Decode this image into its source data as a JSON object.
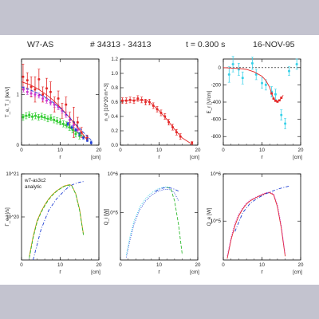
{
  "header": {
    "device": "W7-AS",
    "shots": "# 34313 - 34313",
    "time": "t = 0.300 s",
    "date": "16-NOV-95"
  },
  "colors": {
    "background": "#c3c3cf",
    "sheet": "#ffffff",
    "axes": "#000000",
    "red": "#e32626",
    "magenta": "#cc33cc",
    "green": "#33cc33",
    "blue": "#1f3fd4",
    "cyan": "#35d0e8",
    "orange": "#c8960a",
    "greenDash": "#33bb33"
  },
  "chart_data": [
    {
      "id": "te_ti",
      "type": "scatter",
      "ylabel": "T_e, T_i [keV]",
      "xlabel": "r",
      "xunit": "[cm]",
      "xlim": [
        0,
        20
      ],
      "ylim": [
        0,
        1.7
      ],
      "xticks": [
        "0",
        "10",
        "20"
      ],
      "yticks": [
        {
          "v": 0,
          "t": "0"
        },
        {
          "v": 1,
          "t": "1"
        }
      ],
      "series": [
        {
          "color": "red",
          "style": "errpoints",
          "x": [
            0.4,
            1.5,
            2.5,
            3.5,
            4.5,
            5.5,
            6.5,
            7.5,
            8.5,
            9.5,
            10.5,
            11.5,
            12.5,
            13.5,
            14.5,
            15.5,
            17
          ],
          "y": [
            1.35,
            1.28,
            1.15,
            1.1,
            1.3,
            1.0,
            1.12,
            1.05,
            0.8,
            0.92,
            0.68,
            0.8,
            0.5,
            0.45,
            0.45,
            0.25,
            0.15
          ],
          "err": [
            0.25,
            0.15,
            0.2,
            0.25,
            0.2,
            0.15,
            0.2,
            0.2,
            0.15,
            0.15,
            0.15,
            0.15,
            0.15,
            0.3,
            0.1,
            0.1,
            0.05
          ]
        },
        {
          "color": "magenta",
          "style": "points",
          "x": [
            0.5,
            1.5,
            2.5,
            3.5,
            4.5,
            5.5,
            6.5,
            7.5,
            8.5,
            9.5,
            10.5,
            11.5,
            12.5,
            13.5,
            14.5
          ],
          "y": [
            1.1,
            1.05,
            1.02,
            1.0,
            0.98,
            0.92,
            0.88,
            0.84,
            0.8,
            0.75,
            0.68,
            0.6,
            0.5,
            0.4,
            0.3
          ],
          "err": [
            0.05,
            0.05,
            0.05,
            0.05,
            0.05,
            0.05,
            0.05,
            0.05,
            0.05,
            0.05,
            0.05,
            0.05,
            0.05,
            0.05,
            0.05
          ]
        },
        {
          "color": "green",
          "style": "points",
          "x": [
            0.4,
            1.2,
            2.0,
            2.8,
            3.6,
            4.4,
            5.2,
            6.0,
            6.8,
            7.6,
            8.4,
            9.2,
            10.0,
            10.8,
            11.6,
            12.4,
            13.2,
            14,
            15
          ],
          "y": [
            0.55,
            0.58,
            0.6,
            0.56,
            0.58,
            0.55,
            0.57,
            0.55,
            0.52,
            0.54,
            0.5,
            0.48,
            0.46,
            0.42,
            0.4,
            0.35,
            0.3,
            0.22,
            0.18
          ],
          "err": [
            0.06,
            0.06,
            0.06,
            0.06,
            0.06,
            0.06,
            0.06,
            0.06,
            0.06,
            0.06,
            0.06,
            0.06,
            0.06,
            0.06,
            0.06,
            0.06,
            0.06,
            0.06,
            0.06
          ]
        },
        {
          "color": "blue",
          "style": "points",
          "x": [
            12,
            13,
            14,
            15,
            16,
            17,
            18
          ],
          "y": [
            0.42,
            0.35,
            0.3,
            0.22,
            0.15,
            0.1,
            0.05
          ],
          "err": [
            0.03,
            0.03,
            0.03,
            0.03,
            0.03,
            0.03,
            0.03
          ]
        },
        {
          "color": "red",
          "style": "line",
          "x": [
            0,
            2,
            4,
            6,
            8,
            10,
            12,
            14,
            16,
            17
          ],
          "y": [
            1.25,
            1.2,
            1.12,
            1.02,
            0.9,
            0.75,
            0.58,
            0.4,
            0.2,
            0.1
          ]
        },
        {
          "color": "blue",
          "style": "dash",
          "x": [
            0,
            2,
            4,
            6,
            8,
            10,
            12,
            14,
            16,
            18
          ],
          "y": [
            1.15,
            1.1,
            1.03,
            0.95,
            0.85,
            0.73,
            0.58,
            0.42,
            0.25,
            0.1
          ]
        },
        {
          "color": "green",
          "style": "line",
          "x": [
            0,
            4,
            8,
            12,
            16
          ],
          "y": [
            0.58,
            0.57,
            0.5,
            0.36,
            0.17
          ]
        }
      ]
    },
    {
      "id": "ne",
      "type": "scatter",
      "ylabel": "n_e [10^20 m^-3]",
      "xlabel": "r",
      "xunit": "[cm]",
      "xlim": [
        0,
        20
      ],
      "ylim": [
        0,
        1.2
      ],
      "xticks": [
        "0",
        "10",
        "20"
      ],
      "yticks": [
        {
          "v": 0,
          "t": "0.0"
        },
        {
          "v": 0.2,
          "t": "0.2"
        },
        {
          "v": 0.4,
          "t": "0.4"
        },
        {
          "v": 0.6,
          "t": "0.6"
        },
        {
          "v": 0.8,
          "t": "0.8"
        },
        {
          "v": 1.0,
          "t": "1.0"
        },
        {
          "v": 1.2,
          "t": "1.2"
        }
      ],
      "series": [
        {
          "color": "red",
          "style": "errpoints",
          "x": [
            0.5,
            1.5,
            2.5,
            3.5,
            4.5,
            5.5,
            6.5,
            7.5,
            8.5,
            9.5,
            10.5,
            11.5,
            12.5,
            13.5,
            14.5,
            15.5,
            18.5
          ],
          "y": [
            0.62,
            0.62,
            0.63,
            0.62,
            0.65,
            0.63,
            0.6,
            0.6,
            0.55,
            0.5,
            0.45,
            0.4,
            0.32,
            0.25,
            0.18,
            0.12,
            0.03
          ],
          "err": [
            0.04,
            0.04,
            0.04,
            0.04,
            0.04,
            0.04,
            0.04,
            0.04,
            0.04,
            0.04,
            0.04,
            0.04,
            0.04,
            0.04,
            0.04,
            0.04,
            0.02
          ]
        },
        {
          "color": "red",
          "style": "line",
          "x": [
            0,
            2,
            4,
            6,
            7,
            8,
            10,
            12,
            14,
            16,
            18
          ],
          "y": [
            0.62,
            0.62,
            0.63,
            0.63,
            0.62,
            0.58,
            0.48,
            0.36,
            0.22,
            0.1,
            0.03
          ]
        }
      ]
    },
    {
      "id": "er",
      "type": "scatter",
      "ylabel": "E_r [V/cm]",
      "xlabel": "r",
      "xunit": "[cm]",
      "xlim": [
        0,
        20
      ],
      "ylim": [
        -900,
        100
      ],
      "xticks": [
        "0",
        "10",
        "20"
      ],
      "yticks": [
        {
          "v": 0,
          "t": "0"
        },
        {
          "v": -200,
          "t": "-200"
        },
        {
          "v": -400,
          "t": "-400"
        },
        {
          "v": -600,
          "t": "-600"
        },
        {
          "v": -800,
          "t": "-800"
        }
      ],
      "zero_line": true,
      "series": [
        {
          "color": "cyan",
          "style": "errpoints",
          "x": [
            1.5,
            2.5,
            4,
            5,
            7.5,
            8.5,
            10,
            11,
            12.5,
            13.5,
            15,
            16,
            17,
            19
          ],
          "y": [
            -80,
            40,
            -20,
            -120,
            50,
            -80,
            -180,
            -200,
            -280,
            -310,
            -550,
            -650,
            -40,
            40
          ],
          "err": [
            90,
            90,
            70,
            70,
            70,
            60,
            60,
            60,
            60,
            60,
            60,
            60,
            50,
            60
          ]
        },
        {
          "color": "red",
          "style": "line",
          "x": [
            0,
            4,
            6,
            8,
            10,
            11,
            12,
            12.5,
            13,
            13.5,
            14,
            14.5,
            15,
            15.5
          ],
          "y": [
            0,
            -10,
            -20,
            -50,
            -100,
            -150,
            -230,
            -300,
            -360,
            -380,
            -390,
            -380,
            -350,
            -320
          ]
        },
        {
          "color": "red",
          "style": "points",
          "x": [
            12.5,
            13,
            13.5,
            14,
            14.5,
            15
          ],
          "y": [
            -300,
            -360,
            -385,
            -395,
            -380,
            -350
          ],
          "err": [
            8,
            8,
            8,
            8,
            8,
            8
          ]
        }
      ]
    },
    {
      "id": "gamma",
      "type": "line",
      "ylabel": "Γ_e,i [/s]",
      "xlabel": "r",
      "xunit": "[cm]",
      "xlim": [
        0,
        20
      ],
      "ylog": true,
      "ylim": [
        1e+19,
        1e+21
      ],
      "xticks": [
        "0",
        "10",
        "20"
      ],
      "yticks": [
        {
          "v": 1e+20,
          "t": "10^20"
        },
        {
          "v": 1e+21,
          "t": "10^21"
        }
      ],
      "legend": [
        "w7-as3c2",
        "analytic"
      ],
      "series": [
        {
          "color": "orange",
          "style": "line",
          "x": [
            2,
            3,
            4,
            5,
            6,
            7,
            8,
            9,
            10,
            11,
            12,
            12.5,
            13,
            14,
            15,
            16
          ],
          "y": [
            1.2e+19,
            3.5e+19,
            8e+19,
            1.3e+20,
            1.9e+20,
            2.6e+20,
            3.3e+20,
            4e+20,
            4.6e+20,
            5.2e+20,
            5.5e+20,
            5.6e+20,
            5.3e+20,
            3.5e+20,
            1.5e+20,
            4e+19
          ]
        },
        {
          "color": "greenDash",
          "style": "dash",
          "x": [
            2,
            3,
            4,
            5,
            6,
            7,
            8,
            9,
            10,
            11,
            12,
            12.5,
            13,
            14,
            15,
            16
          ],
          "y": [
            1.1e+19,
            3.2e+19,
            7.5e+19,
            1.25e+20,
            1.8e+20,
            2.5e+20,
            3.2e+20,
            3.9e+20,
            4.5e+20,
            5.1e+20,
            5.4e+20,
            5.5e+20,
            5.2e+20,
            3.4e+20,
            1.4e+20,
            3.8e+19
          ]
        },
        {
          "color": "blue",
          "style": "dashdot",
          "x": [
            3,
            5,
            7,
            9,
            11,
            12,
            13,
            14,
            15,
            16
          ],
          "y": [
            1e+19,
            5e+19,
            1.4e+20,
            2.6e+20,
            4e+20,
            4.8e+20,
            5.5e+20,
            6e+20,
            6.4e+20,
            6.6e+20
          ]
        }
      ]
    },
    {
      "id": "qi",
      "type": "line",
      "ylabel": "Q_i [W]",
      "xlabel": "r",
      "xunit": "[cm]",
      "xlim": [
        0,
        20
      ],
      "ylog": true,
      "ylim": [
        6000.0,
        1000000.0
      ],
      "xticks": [
        "0",
        "10",
        "20"
      ],
      "yticks": [
        {
          "v": 100000.0,
          "t": "10^5"
        },
        {
          "v": 1000000.0,
          "t": "10^6"
        }
      ],
      "series": [
        {
          "color": "blue",
          "style": "dotted",
          "x": [
            1.5,
            2.5,
            3.5,
            5,
            6.5,
            8,
            9.5,
            11,
            12,
            13,
            14,
            15
          ],
          "y": [
            7000.0,
            20000.0,
            50000.0,
            120000.0,
            200000.0,
            280000.0,
            350000.0,
            390000.0,
            400000.0,
            390000.0,
            320000.0,
            200000.0
          ]
        },
        {
          "color": "cyan",
          "style": "dotted",
          "x": [
            1.5,
            2.5,
            3.5,
            5,
            6.5,
            8,
            9.5,
            11,
            12,
            13
          ],
          "y": [
            8000.0,
            25000.0,
            60000.0,
            140000.0,
            230000.0,
            320000.0,
            400000.0,
            450000.0,
            460000.0,
            440000.0
          ]
        },
        {
          "color": "greenDash",
          "style": "dash",
          "x": [
            12,
            13,
            14,
            15,
            15.5,
            16
          ],
          "y": [
            450000.0,
            420000.0,
            200000.0,
            50000.0,
            20000.0,
            8000.0
          ]
        },
        {
          "color": "blue",
          "style": "dashdot",
          "x": [
            9,
            10,
            11,
            12,
            13,
            14,
            15
          ],
          "y": [
            350000.0,
            400000.0,
            430000.0,
            440000.0,
            430000.0,
            400000.0,
            360000.0
          ]
        }
      ]
    },
    {
      "id": "qe",
      "type": "line",
      "ylabel": "Q_e [W]",
      "xlabel": "r",
      "xunit": "[cm]",
      "xlim": [
        0,
        20
      ],
      "ylog": true,
      "ylim": [
        15000.0,
        1000000.0
      ],
      "xticks": [
        "0",
        "10",
        "20"
      ],
      "yticks": [
        {
          "v": 100000.0,
          "t": "10^5"
        },
        {
          "v": 1000000.0,
          "t": "10^6"
        }
      ],
      "series": [
        {
          "color": "red",
          "style": "line",
          "x": [
            1,
            2,
            3,
            4,
            5,
            6,
            7,
            8,
            9,
            10,
            11,
            12,
            13,
            14,
            15,
            15.5,
            16
          ],
          "y": [
            16000.0,
            40000.0,
            80000.0,
            130000.0,
            180000.0,
            230000.0,
            270000.0,
            300000.0,
            330000.0,
            360000.0,
            390000.0,
            400000.0,
            360000.0,
            200000.0,
            70000.0,
            35000.0,
            18000.0
          ]
        },
        {
          "color": "magenta",
          "style": "dotted",
          "x": [
            1,
            2,
            3,
            4,
            5,
            6,
            7,
            8,
            9,
            10,
            11,
            12,
            13,
            14,
            15,
            16
          ],
          "y": [
            18000.0,
            45000.0,
            90000.0,
            140000.0,
            190000.0,
            240000.0,
            280000.0,
            310000.0,
            340000.0,
            370000.0,
            400000.0,
            410000.0,
            380000.0,
            220000.0,
            80000.0,
            20000.0
          ]
        },
        {
          "color": "blue",
          "style": "dashdot",
          "x": [
            3,
            5,
            7,
            9,
            11,
            13,
            15,
            17
          ],
          "y": [
            60000.0,
            150000.0,
            240000.0,
            310000.0,
            380000.0,
            440000.0,
            500000.0,
            550000.0
          ]
        }
      ]
    }
  ]
}
